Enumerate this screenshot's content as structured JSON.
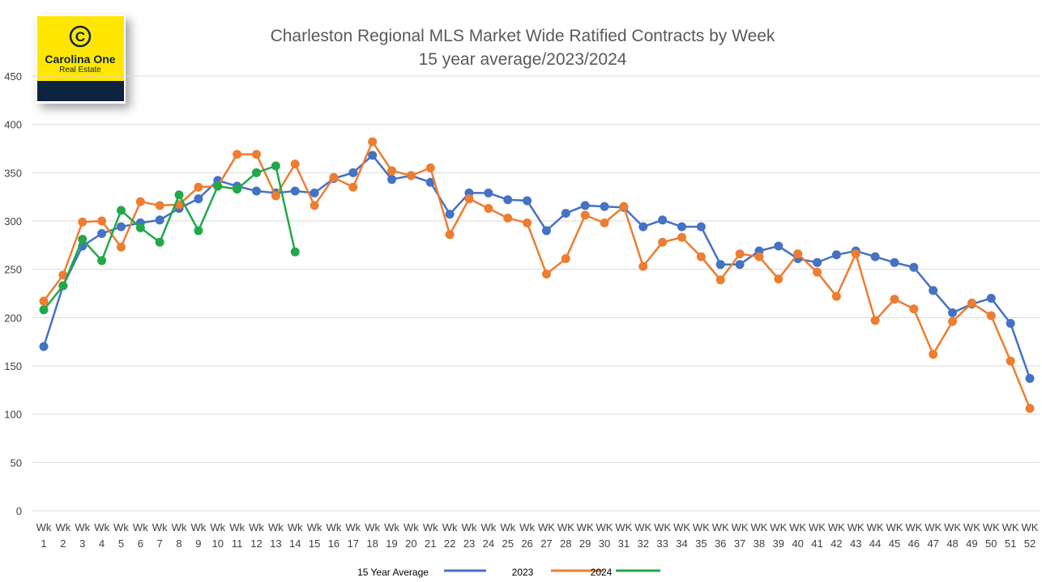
{
  "logo": {
    "name": "Carolina One",
    "tagline": "Real Estate"
  },
  "chart_data": {
    "type": "line",
    "title": "Charleston Regional MLS Market Wide Ratified Contracts by Week",
    "subtitle": "15 year average/2023/2024",
    "categories": [
      "Wk 1",
      "Wk 2",
      "Wk 3",
      "Wk 4",
      "Wk 5",
      "Wk 6",
      "Wk 7",
      "Wk 8",
      "Wk 9",
      "Wk 10",
      "Wk 11",
      "Wk 12",
      "Wk 13",
      "Wk 14",
      "Wk 15",
      "Wk 16",
      "Wk 17",
      "Wk 18",
      "Wk 19",
      "Wk 20",
      "Wk 21",
      "Wk 22",
      "Wk 23",
      "Wk 24",
      "Wk 25",
      "Wk 26",
      "WK 27",
      "WK 28",
      "WK 29",
      "WK 30",
      "WK 31",
      "WK 32",
      "WK 33",
      "WK 34",
      "WK 35",
      "WK 36",
      "WK 37",
      "WK 38",
      "WK 39",
      "WK 40",
      "WK 41",
      "WK 42",
      "WK 43",
      "WK 44",
      "WK 45",
      "WK 46",
      "WK 47",
      "WK 48",
      "WK 49",
      "WK 50",
      "WK 51",
      "WK 52"
    ],
    "series": [
      {
        "name": "15 Year Average",
        "color": "#4472c4",
        "values": [
          170,
          233,
          274,
          287,
          294,
          298,
          301,
          313,
          323,
          342,
          336,
          331,
          329,
          331,
          329,
          344,
          350,
          368,
          343,
          347,
          340,
          307,
          329,
          329,
          322,
          321,
          290,
          308,
          316,
          315,
          314,
          294,
          301,
          294,
          294,
          255,
          255,
          269,
          274,
          261,
          257,
          265,
          269,
          263,
          257,
          252,
          228,
          205,
          214,
          220,
          194,
          137
        ]
      },
      {
        "name": "2023",
        "color": "#ed7d31",
        "values": [
          217,
          244,
          299,
          300,
          273,
          320,
          316,
          317,
          335,
          336,
          369,
          369,
          326,
          359,
          316,
          345,
          335,
          382,
          352,
          347,
          355,
          286,
          323,
          313,
          303,
          298,
          245,
          261,
          306,
          298,
          315,
          253,
          278,
          283,
          263,
          239,
          266,
          263,
          240,
          266,
          247,
          222,
          266,
          197,
          219,
          209,
          162,
          196,
          215,
          202,
          155,
          106
        ]
      },
      {
        "name": "2024",
        "color": "#22a84a",
        "values": [
          208,
          233,
          281,
          259,
          311,
          293,
          278,
          327,
          290,
          336,
          333,
          350,
          357,
          268,
          null,
          null,
          null,
          null,
          null,
          null,
          null,
          null,
          null,
          null,
          null,
          null,
          null,
          null,
          null,
          null,
          null,
          null,
          null,
          null,
          null,
          null,
          null,
          null,
          null,
          null,
          null,
          null,
          null,
          null,
          null,
          null,
          null,
          null,
          null,
          null,
          null,
          null
        ]
      }
    ],
    "ylim": [
      0,
      450
    ],
    "yticks": [
      0,
      50,
      100,
      150,
      200,
      250,
      300,
      350,
      400,
      450
    ],
    "grid": true,
    "legend": "bottom"
  }
}
